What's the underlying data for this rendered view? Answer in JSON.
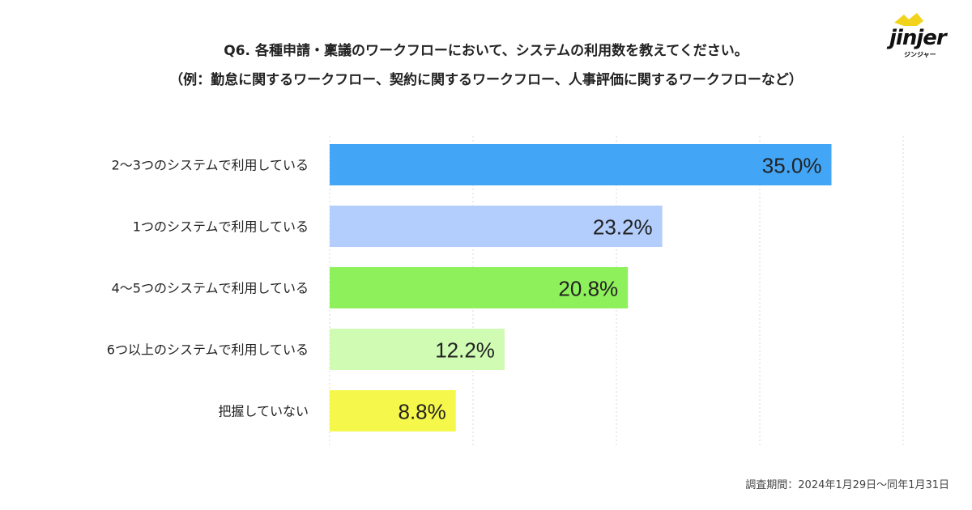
{
  "header": {
    "title_line1": "Q6. 各種申請・稟議のワークフローにおいて、システムの利用数を教えてください。",
    "title_line2": "（例：勤怠に関するワークフロー、契約に関するワークフロー、人事評価に関するワークフローなど）"
  },
  "logo": {
    "word": "jinjer",
    "sub": "ジンジャー"
  },
  "footnote": "調査期間：2024年1月29日〜同年1月31日",
  "chart_data": {
    "type": "bar",
    "orientation": "horizontal",
    "title": "Q6. 各種申請・稟議のワークフローにおいて、システムの利用数を教えてください。",
    "categories": [
      "2〜3つのシステムで利用している",
      "1つのシステムで利用している",
      "4〜5つのシステムで利用している",
      "6つ以上のシステムで利用している",
      "把握していない"
    ],
    "values": [
      35.0,
      23.2,
      20.8,
      12.2,
      8.8
    ],
    "value_labels": [
      "35.0%",
      "23.2%",
      "20.8%",
      "12.2%",
      "8.8%"
    ],
    "colors": [
      "#42a5f5",
      "#b3cdfc",
      "#8ef05a",
      "#cffbb3",
      "#f5f74a"
    ],
    "xlim": [
      0,
      40
    ],
    "grid_step": 10,
    "grid": true,
    "xlabel": "",
    "ylabel": ""
  }
}
